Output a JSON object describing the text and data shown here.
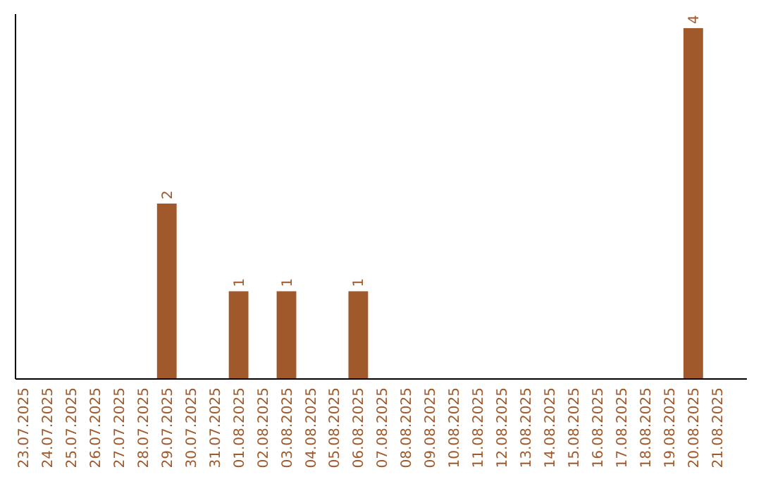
{
  "chart_data": {
    "type": "bar",
    "categories": [
      "23.07.2025",
      "24.07.2025",
      "25.07.2025",
      "26.07.2025",
      "27.07.2025",
      "28.07.2025",
      "29.07.2025",
      "30.07.2025",
      "31.07.2025",
      "01.08.2025",
      "02.08.2025",
      "03.08.2025",
      "04.08.2025",
      "05.08.2025",
      "06.08.2025",
      "07.08.2025",
      "08.08.2025",
      "09.08.2025",
      "10.08.2025",
      "11.08.2025",
      "12.08.2025",
      "13.08.2025",
      "14.08.2025",
      "15.08.2025",
      "16.08.2025",
      "17.08.2025",
      "18.08.2025",
      "19.08.2025",
      "20.08.2025",
      "21.08.2025"
    ],
    "values": [
      0,
      0,
      0,
      0,
      0,
      0,
      2,
      0,
      0,
      1,
      0,
      1,
      0,
      0,
      1,
      0,
      0,
      0,
      0,
      0,
      0,
      0,
      0,
      0,
      0,
      0,
      0,
      0,
      4,
      0
    ],
    "value_labels": [
      null,
      null,
      null,
      null,
      null,
      null,
      "2",
      null,
      null,
      "1",
      null,
      "1",
      null,
      null,
      "1",
      null,
      null,
      null,
      null,
      null,
      null,
      null,
      null,
      null,
      null,
      null,
      null,
      null,
      "4",
      null
    ],
    "color": "#a0592b",
    "tick_labels": "x"
  }
}
